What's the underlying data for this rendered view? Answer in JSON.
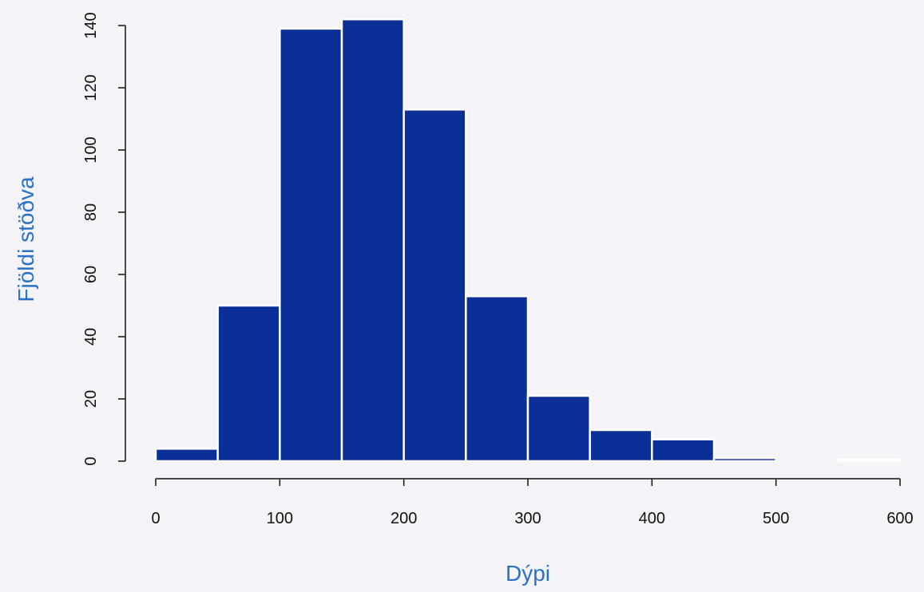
{
  "colors": {
    "background": "#f4f4f8",
    "bar_fill": "#0a2f96",
    "bar_edge": "#ffffff",
    "axis": "#111111",
    "axis_title": "#2a72c8"
  },
  "chart_data": {
    "type": "bar",
    "title": "",
    "xlabel": "Dýpi",
    "ylabel": "Fjöldi stöðva",
    "grid": false,
    "legend": "none",
    "xlim": [
      0,
      600
    ],
    "ylim": [
      0,
      140
    ],
    "xticks": [
      0,
      100,
      200,
      300,
      400,
      500,
      600
    ],
    "yticks": [
      0,
      20,
      40,
      60,
      80,
      100,
      120,
      140
    ],
    "bin_edges": [
      0,
      50,
      100,
      150,
      200,
      250,
      300,
      350,
      400,
      450,
      500,
      550,
      600
    ],
    "values": [
      4,
      50,
      139,
      142,
      113,
      53,
      21,
      10,
      7,
      1,
      0,
      0.5
    ]
  }
}
